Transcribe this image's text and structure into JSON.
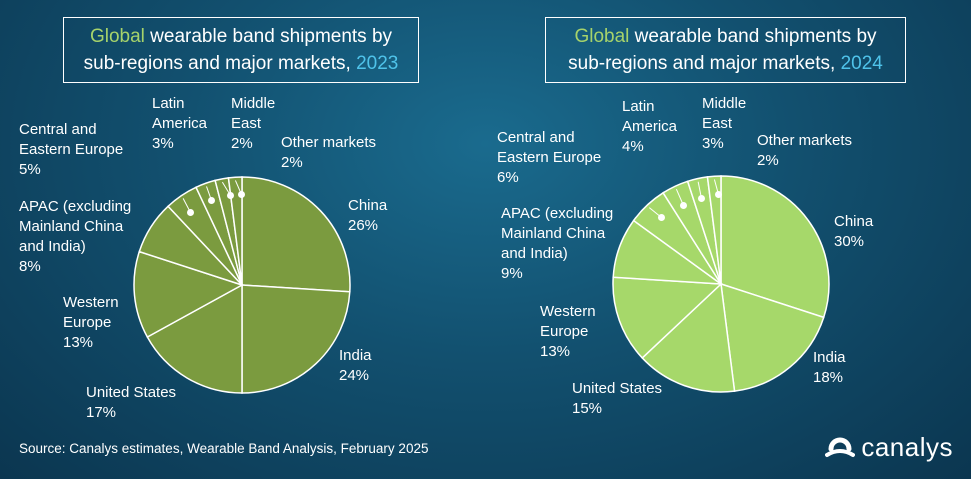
{
  "source": "Source: Canalys estimates, Wearable Band Analysis, February 2025",
  "brand": "canalys",
  "colors": {
    "pie_2023": "#7b9b3f",
    "pie_2024": "#a6d86a",
    "title_green": "#a6d36b",
    "title_year": "#4fc3ea"
  },
  "chart_data": [
    {
      "type": "pie",
      "title_parts": [
        "Global",
        " wearable band shipments by",
        "sub-regions and major markets, ",
        "2023"
      ],
      "categories": [
        "China",
        "India",
        "United States",
        "Western Europe",
        "APAC (excluding Mainland China and India)",
        "Central and Eastern Europe",
        "Latin America",
        "Middle East",
        "Other markets"
      ],
      "values": [
        26,
        24,
        17,
        13,
        8,
        5,
        3,
        2,
        2
      ],
      "labels": [
        {
          "name": [
            "China"
          ],
          "pct": "26%"
        },
        {
          "name": [
            "India"
          ],
          "pct": "24%"
        },
        {
          "name": [
            "United States"
          ],
          "pct": "17%"
        },
        {
          "name": [
            "Western",
            "Europe"
          ],
          "pct": "13%"
        },
        {
          "name": [
            "APAC (excluding",
            "Mainland China",
            "and India)"
          ],
          "pct": "8%"
        },
        {
          "name": [
            "Central and",
            "Eastern Europe"
          ],
          "pct": "5%"
        },
        {
          "name": [
            "Latin",
            "America"
          ],
          "pct": "3%"
        },
        {
          "name": [
            "Middle",
            "East"
          ],
          "pct": "2%"
        },
        {
          "name": [
            "Other markets"
          ],
          "pct": "2%"
        }
      ]
    },
    {
      "type": "pie",
      "title_parts": [
        "Global",
        " wearable band shipments by",
        "sub-regions and major markets, ",
        "2024"
      ],
      "categories": [
        "China",
        "India",
        "United States",
        "Western Europe",
        "APAC (excluding Mainland China and India)",
        "Central and Eastern Europe",
        "Latin America",
        "Middle East",
        "Other markets"
      ],
      "values": [
        30,
        18,
        15,
        13,
        9,
        6,
        4,
        3,
        2
      ],
      "labels": [
        {
          "name": [
            "China"
          ],
          "pct": "30%"
        },
        {
          "name": [
            "India"
          ],
          "pct": "18%"
        },
        {
          "name": [
            "United States"
          ],
          "pct": "15%"
        },
        {
          "name": [
            "Western",
            "Europe"
          ],
          "pct": "13%"
        },
        {
          "name": [
            "APAC (excluding",
            "Mainland China",
            "and India)"
          ],
          "pct": "9%"
        },
        {
          "name": [
            "Central and",
            "Eastern Europe"
          ],
          "pct": "6%"
        },
        {
          "name": [
            "Latin",
            "America"
          ],
          "pct": "4%"
        },
        {
          "name": [
            "Middle",
            "East"
          ],
          "pct": "3%"
        },
        {
          "name": [
            "Other markets"
          ],
          "pct": "2%"
        }
      ]
    }
  ]
}
